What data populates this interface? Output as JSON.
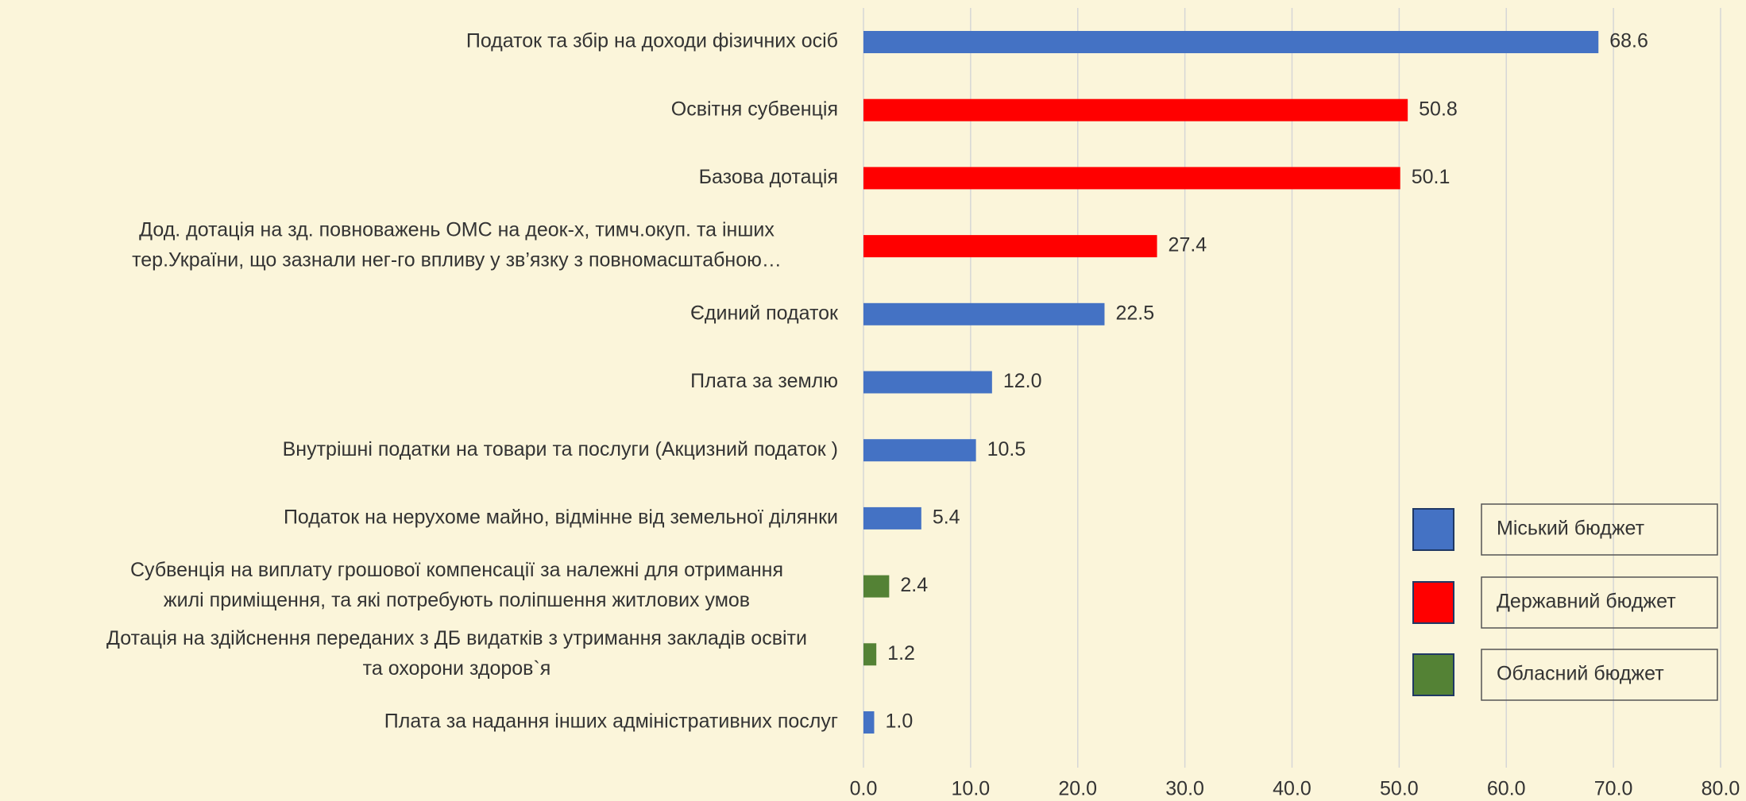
{
  "chart_data": {
    "type": "bar",
    "orientation": "horizontal",
    "categories": [
      [
        "Податок та збір на доходи фізичних осіб"
      ],
      [
        "Освітня субвенція"
      ],
      [
        "Базова дотація"
      ],
      [
        "Дод. дотація на зд. повноважень ОМС на деок-х, тимч.окуп. та інших",
        "тер.України, що зазнали нег-го впливу у зв’язку з повномасштабною…"
      ],
      [
        "Єдиний податок"
      ],
      [
        "Плата за землю"
      ],
      [
        "Внутрішні податки на товари та послуги  (Акцизний податок )"
      ],
      [
        "Податок на нерухоме майно, відмінне від земельної ділянки"
      ],
      [
        "Субвенція на виплату грошової компенсації за належні для отримання",
        "жилі приміщення, та які потребують поліпшення житлових умов"
      ],
      [
        "Дотація на здійснення переданих з ДБ видатків з утримання закладів освіти",
        "та охорони здоров`я"
      ],
      [
        "Плата за надання інших адміністративних послуг"
      ]
    ],
    "values": [
      68.6,
      50.8,
      50.1,
      27.4,
      22.5,
      12.0,
      10.5,
      5.4,
      2.4,
      1.2,
      1.0
    ],
    "value_labels": [
      "68.6",
      "50.8",
      "50.1",
      "27.4",
      "22.5",
      "12.0",
      "10.5",
      "5.4",
      "2.4",
      "1.2",
      "1.0"
    ],
    "bar_colors": [
      "#4472c4",
      "#ff0000",
      "#ff0000",
      "#ff0000",
      "#4472c4",
      "#4472c4",
      "#4472c4",
      "#4472c4",
      "#548235",
      "#548235",
      "#4472c4"
    ],
    "legend": [
      {
        "name": "Міський бюджет",
        "color": "#4472c4"
      },
      {
        "name": "Державний бюджет",
        "color": "#ff0000"
      },
      {
        "name": "Обласний бюджет",
        "color": "#548235"
      }
    ],
    "xlim": [
      0,
      80
    ],
    "xticks": [
      {
        "value": 0,
        "label": "0.0"
      },
      {
        "value": 10,
        "label": "10.0"
      },
      {
        "value": 20,
        "label": "20.0"
      },
      {
        "value": 30,
        "label": "30.0"
      },
      {
        "value": 40,
        "label": "40.0"
      },
      {
        "value": 50,
        "label": "50.0"
      },
      {
        "value": 60,
        "label": "60.0"
      },
      {
        "value": 70,
        "label": "70.0"
      },
      {
        "value": 80,
        "label": "80.0"
      }
    ],
    "grid": true
  }
}
